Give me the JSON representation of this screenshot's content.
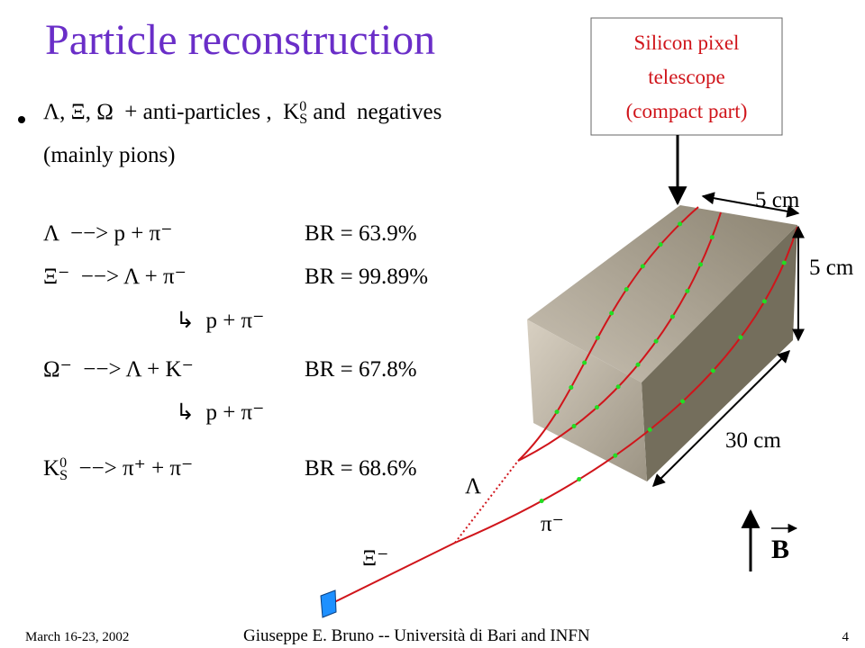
{
  "title": "Particle reconstruction",
  "intro": {
    "text1": "Λ, Ξ, Ω  + anti-particles ,  K",
    "sup": "0",
    "sub": "S",
    "text2": " and  negatives",
    "line2": "(mainly pions)"
  },
  "decays": [
    {
      "reaction": "Λ  −−> p + π⁻",
      "br": "BR = 63.9%"
    },
    {
      "reaction": "Ξ⁻  −−> Λ + π⁻",
      "br": "BR = 99.89%"
    },
    {
      "reaction": "↳  p + π⁻"
    },
    {
      "reaction": "Ω⁻  −−> Λ + K⁻",
      "br": "BR = 67.8%"
    },
    {
      "reaction": "↳  p + π⁻"
    },
    {
      "k": "K",
      "sup": "0",
      "sub": "S",
      "rest": "  −−> π⁺ + π⁻",
      "br": "BR = 68.6%"
    }
  ],
  "diagram": {
    "callout": [
      "Silicon pixel",
      "telescope",
      "(compact part)"
    ],
    "dims": [
      "5 cm",
      "5 cm",
      "30 cm"
    ],
    "lambda": "Λ",
    "pion": "π⁻",
    "xi": "Ξ⁻",
    "field": "B"
  },
  "footer": {
    "date": "March 16-23, 2002",
    "author": "Giuseppe E. Bruno -- Università di Bari and INFN",
    "page": "4"
  }
}
